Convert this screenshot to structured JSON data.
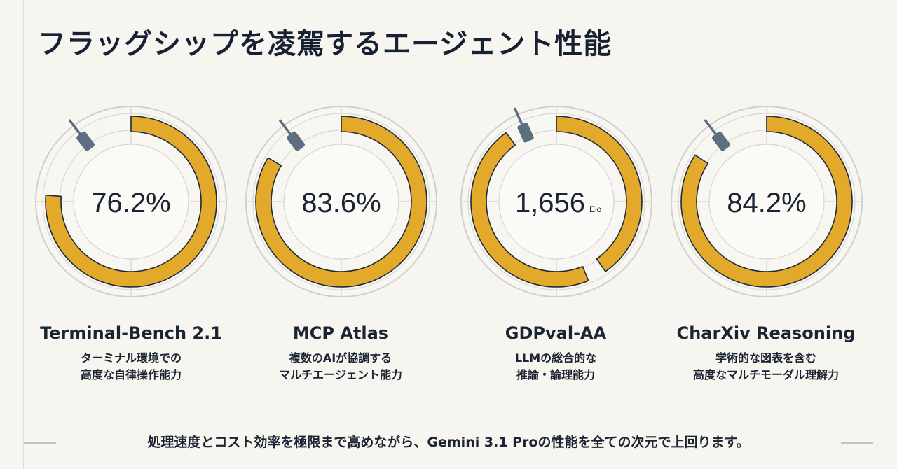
{
  "title": "フラッグシップを凌駕するエージェント性能",
  "footer": "処理速度とコスト効率を極限まで高めながら、Gemini 3.1 Proの性能を全ての次元で上回ります。",
  "colors": {
    "arc": "#e3a92b",
    "arc_edge": "#1f2a3a",
    "needle": "#5c6f80",
    "dial_fill": "#f8f6f0",
    "dial_ring": "#cfcfcf",
    "text": "#1b2433"
  },
  "chart_data": {
    "type": "gauge",
    "gauges": [
      {
        "value_text": "76.2%",
        "unit": "",
        "fill_fraction": 0.762,
        "name": "Terminal-Bench 2.1",
        "desc_line1": "ターミナル環境での",
        "desc_line2": "高度な自律操作能力"
      },
      {
        "value_text": "83.6%",
        "unit": "",
        "fill_fraction": 0.836,
        "name": "MCP Atlas",
        "desc_line1": "複数のAIが協調する",
        "desc_line2": "マルチエージェント能力"
      },
      {
        "value_text": "1,656",
        "unit": "Elo",
        "fill_fraction": 0.9,
        "split_arc": true,
        "name": "GDPval-AA",
        "desc_line1": "LLMの総合的な",
        "desc_line2": "推論・論理能力"
      },
      {
        "value_text": "84.2%",
        "unit": "",
        "fill_fraction": 0.842,
        "name": "CharXiv Reasoning",
        "desc_line1": "学術的な図表を含む",
        "desc_line2": "高度なマルチモーダル理解力"
      }
    ]
  }
}
